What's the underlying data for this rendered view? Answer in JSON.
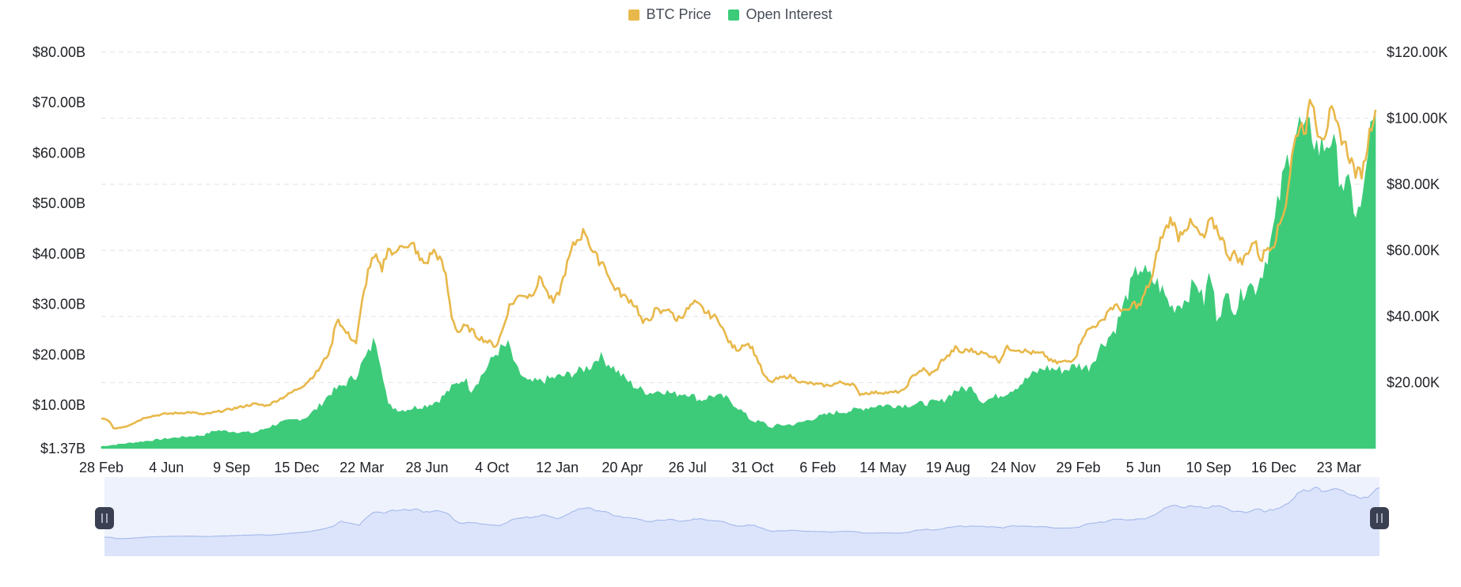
{
  "legend": {
    "price_label": "BTC Price",
    "oi_label": "Open Interest"
  },
  "colors": {
    "price": "#E8B84A",
    "open_interest": "#3DCB7A",
    "grid": "#E6E8EA",
    "navigator_fill": "#DCE4FB",
    "navigator_line": "#A9BCEB",
    "navigator_bg": "#EEF2FD",
    "handle": "#3A4052"
  },
  "icons": {
    "navigator_handle_left": "grip-handle-icon",
    "navigator_handle_right": "grip-handle-icon"
  },
  "chart_data": {
    "type": "area",
    "title": "",
    "x": [
      "28 Feb",
      "4 Jun",
      "9 Sep",
      "15 Dec",
      "22 Mar",
      "28 Jun",
      "4 Oct",
      "12 Jan",
      "20 Apr",
      "26 Jul",
      "31 Oct",
      "6 Feb",
      "14 May",
      "19 Aug",
      "24 Nov",
      "29 Feb",
      "5 Jun",
      "10 Sep",
      "16 Dec",
      "23 Mar"
    ],
    "x_ticks": [
      "28 Feb",
      "4 Jun",
      "9 Sep",
      "15 Dec",
      "22 Mar",
      "28 Jun",
      "4 Oct",
      "12 Jan",
      "20 Apr",
      "26 Jul",
      "31 Oct",
      "6 Feb",
      "14 May",
      "19 Aug",
      "24 Nov",
      "29 Feb",
      "5 Jun",
      "10 Sep",
      "16 Dec",
      "23 Mar"
    ],
    "y_left": {
      "ticks": [
        "$1.37B",
        "$10.00B",
        "$20.00B",
        "$30.00B",
        "$40.00B",
        "$50.00B",
        "$60.00B",
        "$70.00B",
        "$80.00B"
      ],
      "range": [
        1.37,
        80
      ]
    },
    "y_right": {
      "ticks": [
        "$20.00K",
        "$40.00K",
        "$60.00K",
        "$80.00K",
        "$100.00K",
        "$120.00K"
      ],
      "range": [
        0,
        120000
      ]
    },
    "grid": true,
    "legend_position": "top-center",
    "series": [
      {
        "name": "Open Interest",
        "type": "area",
        "axis": "left",
        "unit": "billion USD",
        "values": [
          [
            0,
            1.8
          ],
          [
            0.02,
            2.4
          ],
          [
            0.04,
            3.0
          ],
          [
            0.06,
            3.6
          ],
          [
            0.08,
            4.0
          ],
          [
            0.09,
            5.0
          ],
          [
            0.1,
            4.8
          ],
          [
            0.12,
            4.5
          ],
          [
            0.14,
            6.5
          ],
          [
            0.16,
            7.5
          ],
          [
            0.17,
            9.5
          ],
          [
            0.18,
            12.5
          ],
          [
            0.19,
            14.0
          ],
          [
            0.2,
            16.0
          ],
          [
            0.205,
            18.5
          ],
          [
            0.21,
            20.5
          ],
          [
            0.215,
            23.5
          ],
          [
            0.22,
            17.5
          ],
          [
            0.225,
            10.0
          ],
          [
            0.235,
            9.0
          ],
          [
            0.245,
            9.5
          ],
          [
            0.255,
            10.0
          ],
          [
            0.265,
            11.0
          ],
          [
            0.275,
            13.5
          ],
          [
            0.285,
            15.5
          ],
          [
            0.29,
            13.0
          ],
          [
            0.3,
            16.5
          ],
          [
            0.31,
            20.5
          ],
          [
            0.315,
            21.5
          ],
          [
            0.32,
            22.0
          ],
          [
            0.325,
            17.5
          ],
          [
            0.335,
            14.5
          ],
          [
            0.345,
            14.8
          ],
          [
            0.355,
            15.5
          ],
          [
            0.365,
            16.0
          ],
          [
            0.375,
            16.8
          ],
          [
            0.385,
            18.0
          ],
          [
            0.39,
            20.0
          ],
          [
            0.4,
            18.0
          ],
          [
            0.41,
            15.5
          ],
          [
            0.42,
            13.5
          ],
          [
            0.43,
            12.5
          ],
          [
            0.44,
            13.0
          ],
          [
            0.45,
            12.2
          ],
          [
            0.46,
            12.5
          ],
          [
            0.47,
            11.0
          ],
          [
            0.48,
            12.0
          ],
          [
            0.49,
            11.5
          ],
          [
            0.5,
            9.5
          ],
          [
            0.51,
            7.0
          ],
          [
            0.52,
            6.5
          ],
          [
            0.525,
            5.5
          ],
          [
            0.53,
            6.0
          ],
          [
            0.545,
            6.2
          ],
          [
            0.56,
            7.5
          ],
          [
            0.575,
            8.5
          ],
          [
            0.59,
            9.0
          ],
          [
            0.61,
            10.0
          ],
          [
            0.63,
            10.0
          ],
          [
            0.65,
            10.5
          ],
          [
            0.66,
            10.8
          ],
          [
            0.67,
            13.0
          ],
          [
            0.685,
            13.5
          ],
          [
            0.69,
            10.8
          ],
          [
            0.7,
            11.5
          ],
          [
            0.71,
            12.5
          ],
          [
            0.72,
            14.0
          ],
          [
            0.73,
            16.0
          ],
          [
            0.74,
            17.5
          ],
          [
            0.755,
            17.0
          ],
          [
            0.765,
            18.0
          ],
          [
            0.775,
            17.5
          ],
          [
            0.785,
            22.0
          ],
          [
            0.795,
            25.0
          ],
          [
            0.8,
            28.0
          ],
          [
            0.805,
            32.0
          ],
          [
            0.81,
            35.0
          ],
          [
            0.815,
            38.0
          ],
          [
            0.82,
            36.0
          ],
          [
            0.83,
            34.0
          ],
          [
            0.84,
            29.5
          ],
          [
            0.85,
            31.0
          ],
          [
            0.86,
            35.0
          ],
          [
            0.865,
            30.0
          ],
          [
            0.87,
            37.0
          ],
          [
            0.875,
            28.0
          ],
          [
            0.885,
            32.0
          ],
          [
            0.89,
            29.0
          ],
          [
            0.895,
            32.0
          ],
          [
            0.9,
            35.0
          ],
          [
            0.905,
            33.0
          ],
          [
            0.91,
            36.0
          ],
          [
            0.915,
            40.0
          ],
          [
            0.92,
            45.0
          ],
          [
            0.925,
            52.0
          ],
          [
            0.93,
            58.0
          ],
          [
            0.935,
            63.0
          ],
          [
            0.94,
            66.0
          ],
          [
            0.945,
            64.0
          ],
          [
            0.95,
            65.0
          ],
          [
            0.955,
            61.0
          ],
          [
            0.96,
            62.0
          ],
          [
            0.965,
            64.0
          ],
          [
            0.97,
            58.0
          ],
          [
            0.975,
            54.0
          ],
          [
            0.98,
            53.0
          ],
          [
            0.985,
            48.0
          ],
          [
            0.99,
            50.0
          ],
          [
            0.995,
            64.0
          ],
          [
            1.0,
            66.0
          ]
        ]
      },
      {
        "name": "BTC Price",
        "type": "line",
        "axis": "right",
        "unit": "USD",
        "values": [
          [
            0,
            9000
          ],
          [
            0.005,
            8800
          ],
          [
            0.01,
            6000
          ],
          [
            0.02,
            6800
          ],
          [
            0.035,
            9500
          ],
          [
            0.05,
            10500
          ],
          [
            0.07,
            11000
          ],
          [
            0.08,
            10300
          ],
          [
            0.1,
            11800
          ],
          [
            0.12,
            13500
          ],
          [
            0.13,
            13000
          ],
          [
            0.145,
            16000
          ],
          [
            0.16,
            19500
          ],
          [
            0.17,
            23500
          ],
          [
            0.18,
            30000
          ],
          [
            0.185,
            40000
          ],
          [
            0.19,
            36000
          ],
          [
            0.2,
            32000
          ],
          [
            0.205,
            45000
          ],
          [
            0.21,
            55000
          ],
          [
            0.215,
            58000
          ],
          [
            0.22,
            54000
          ],
          [
            0.225,
            61000
          ],
          [
            0.23,
            58000
          ],
          [
            0.235,
            63000
          ],
          [
            0.24,
            60000
          ],
          [
            0.245,
            62000
          ],
          [
            0.25,
            57000
          ],
          [
            0.255,
            56000
          ],
          [
            0.26,
            60000
          ],
          [
            0.265,
            58000
          ],
          [
            0.27,
            53000
          ],
          [
            0.275,
            40000
          ],
          [
            0.28,
            35000
          ],
          [
            0.285,
            37000
          ],
          [
            0.29,
            36000
          ],
          [
            0.295,
            34000
          ],
          [
            0.3,
            33000
          ],
          [
            0.305,
            32000
          ],
          [
            0.31,
            31000
          ],
          [
            0.315,
            36000
          ],
          [
            0.32,
            43000
          ],
          [
            0.33,
            47000
          ],
          [
            0.335,
            46000
          ],
          [
            0.34,
            48000
          ],
          [
            0.345,
            52000
          ],
          [
            0.35,
            47000
          ],
          [
            0.355,
            44000
          ],
          [
            0.36,
            48000
          ],
          [
            0.365,
            55000
          ],
          [
            0.37,
            61000
          ],
          [
            0.375,
            64000
          ],
          [
            0.38,
            66000
          ],
          [
            0.385,
            60000
          ],
          [
            0.39,
            57000
          ],
          [
            0.395,
            56000
          ],
          [
            0.4,
            50000
          ],
          [
            0.405,
            48000
          ],
          [
            0.41,
            46000
          ],
          [
            0.415,
            45000
          ],
          [
            0.42,
            43000
          ],
          [
            0.425,
            38000
          ],
          [
            0.43,
            39000
          ],
          [
            0.435,
            42000
          ],
          [
            0.44,
            41000
          ],
          [
            0.445,
            43000
          ],
          [
            0.45,
            39000
          ],
          [
            0.455,
            40000
          ],
          [
            0.46,
            42000
          ],
          [
            0.465,
            44000
          ],
          [
            0.47,
            43000
          ],
          [
            0.475,
            41000
          ],
          [
            0.48,
            40000
          ],
          [
            0.485,
            39000
          ],
          [
            0.49,
            34000
          ],
          [
            0.495,
            31000
          ],
          [
            0.5,
            30000
          ],
          [
            0.505,
            32000
          ],
          [
            0.51,
            31000
          ],
          [
            0.515,
            27000
          ],
          [
            0.52,
            22000
          ],
          [
            0.525,
            20000
          ],
          [
            0.53,
            21000
          ],
          [
            0.535,
            21500
          ],
          [
            0.54,
            22000
          ],
          [
            0.545,
            21000
          ],
          [
            0.55,
            20000
          ],
          [
            0.56,
            19500
          ],
          [
            0.57,
            19000
          ],
          [
            0.58,
            20000
          ],
          [
            0.59,
            19500
          ],
          [
            0.595,
            16500
          ],
          [
            0.6,
            16800
          ],
          [
            0.61,
            17000
          ],
          [
            0.62,
            16900
          ],
          [
            0.63,
            17500
          ],
          [
            0.635,
            21000
          ],
          [
            0.64,
            23000
          ],
          [
            0.645,
            24000
          ],
          [
            0.65,
            22500
          ],
          [
            0.655,
            23500
          ],
          [
            0.66,
            27000
          ],
          [
            0.665,
            28000
          ],
          [
            0.67,
            30500
          ],
          [
            0.675,
            29000
          ],
          [
            0.68,
            30000
          ],
          [
            0.69,
            29000
          ],
          [
            0.7,
            28000
          ],
          [
            0.705,
            26500
          ],
          [
            0.71,
            30500
          ],
          [
            0.72,
            30000
          ],
          [
            0.73,
            29000
          ],
          [
            0.74,
            28500
          ],
          [
            0.745,
            26500
          ],
          [
            0.75,
            26000
          ],
          [
            0.76,
            26500
          ],
          [
            0.765,
            28000
          ],
          [
            0.77,
            34000
          ],
          [
            0.775,
            36000
          ],
          [
            0.78,
            37500
          ],
          [
            0.785,
            38000
          ],
          [
            0.79,
            42000
          ],
          [
            0.795,
            43000
          ],
          [
            0.8,
            42500
          ],
          [
            0.805,
            41000
          ],
          [
            0.81,
            44000
          ],
          [
            0.815,
            43000
          ],
          [
            0.82,
            48000
          ],
          [
            0.825,
            52000
          ],
          [
            0.83,
            62000
          ],
          [
            0.835,
            66000
          ],
          [
            0.84,
            70000
          ],
          [
            0.845,
            64000
          ],
          [
            0.85,
            67000
          ],
          [
            0.855,
            68000
          ],
          [
            0.86,
            66000
          ],
          [
            0.865,
            63000
          ],
          [
            0.87,
            69000
          ],
          [
            0.875,
            67000
          ],
          [
            0.88,
            63000
          ],
          [
            0.885,
            58000
          ],
          [
            0.89,
            59000
          ],
          [
            0.895,
            56000
          ],
          [
            0.9,
            60000
          ],
          [
            0.905,
            63000
          ],
          [
            0.91,
            57000
          ],
          [
            0.915,
            61000
          ],
          [
            0.92,
            62000
          ],
          [
            0.925,
            68000
          ],
          [
            0.93,
            75000
          ],
          [
            0.935,
            90000
          ],
          [
            0.94,
            98000
          ],
          [
            0.945,
            97000
          ],
          [
            0.95,
            106000
          ],
          [
            0.955,
            96000
          ],
          [
            0.96,
            95000
          ],
          [
            0.965,
            102000
          ],
          [
            0.97,
            97000
          ],
          [
            0.975,
            93000
          ],
          [
            0.98,
            88000
          ],
          [
            0.985,
            83000
          ],
          [
            0.99,
            84000
          ],
          [
            0.995,
            95000
          ],
          [
            1.0,
            104000
          ]
        ]
      }
    ]
  }
}
